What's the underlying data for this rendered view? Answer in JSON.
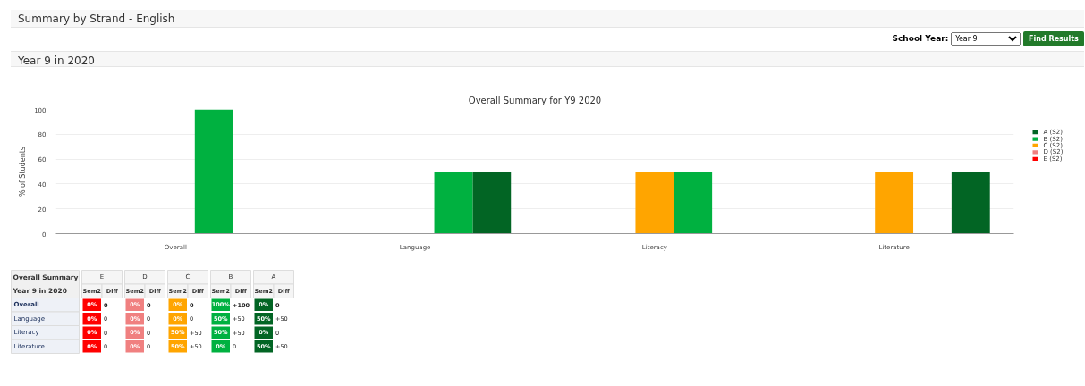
{
  "chart_data": [
    {
      "type": "bar",
      "title": "Overall Summary for Y9 2020",
      "ylabel": "% of Students",
      "annotations": [
        "Summary by Strand - English",
        "School Year:",
        "Year 9",
        "Find Results",
        "Year 9 in 2020"
      ],
      "categories": [
        "Overall",
        "Language",
        "Literacy",
        "Literature"
      ],
      "series": [
        {
          "name": "A (S2)",
          "color": "#026524",
          "values": [
            0,
            50,
            0,
            50
          ]
        },
        {
          "name": "B (S2)",
          "color": "#00b140",
          "values": [
            100,
            50,
            50,
            0
          ]
        },
        {
          "name": "C (S2)",
          "color": "#ffa500",
          "values": [
            0,
            0,
            50,
            50
          ]
        },
        {
          "name": "D (S2)",
          "color": "#f08080",
          "values": [
            0,
            0,
            0,
            0
          ]
        },
        {
          "name": "E (S2)",
          "color": "#ff0000",
          "values": [
            0,
            0,
            0,
            0
          ]
        }
      ],
      "ylim": [
        0,
        100
      ],
      "yticks": [
        0,
        20,
        40,
        60,
        80,
        100
      ],
      "grid": "y",
      "legend": "right"
    },
    {
      "type": "other",
      "title": "Overall Summary",
      "subtitle": "Year 9 in 2020",
      "categories": [
        "E",
        "D",
        "C",
        "B",
        "A"
      ],
      "annotations": [
        "Sem2",
        "Diff"
      ],
      "y_categories": [
        "Overall",
        "Language",
        "Literacy",
        "Literature"
      ],
      "cell_labels": [
        [
          "0%",
          "0",
          "0%",
          "0",
          "0%",
          "0",
          "100%",
          "+100",
          "0%",
          "0"
        ],
        [
          "0%",
          "0",
          "0%",
          "0",
          "0%",
          "0",
          "50%",
          "+50",
          "50%",
          "+50"
        ],
        [
          "0%",
          "0",
          "0%",
          "0",
          "50%",
          "+50",
          "50%",
          "+50",
          "0%",
          "0"
        ],
        [
          "0%",
          "0",
          "0%",
          "0",
          "50%",
          "+50",
          "0%",
          "0",
          "50%",
          "+50"
        ]
      ]
    }
  ]
}
